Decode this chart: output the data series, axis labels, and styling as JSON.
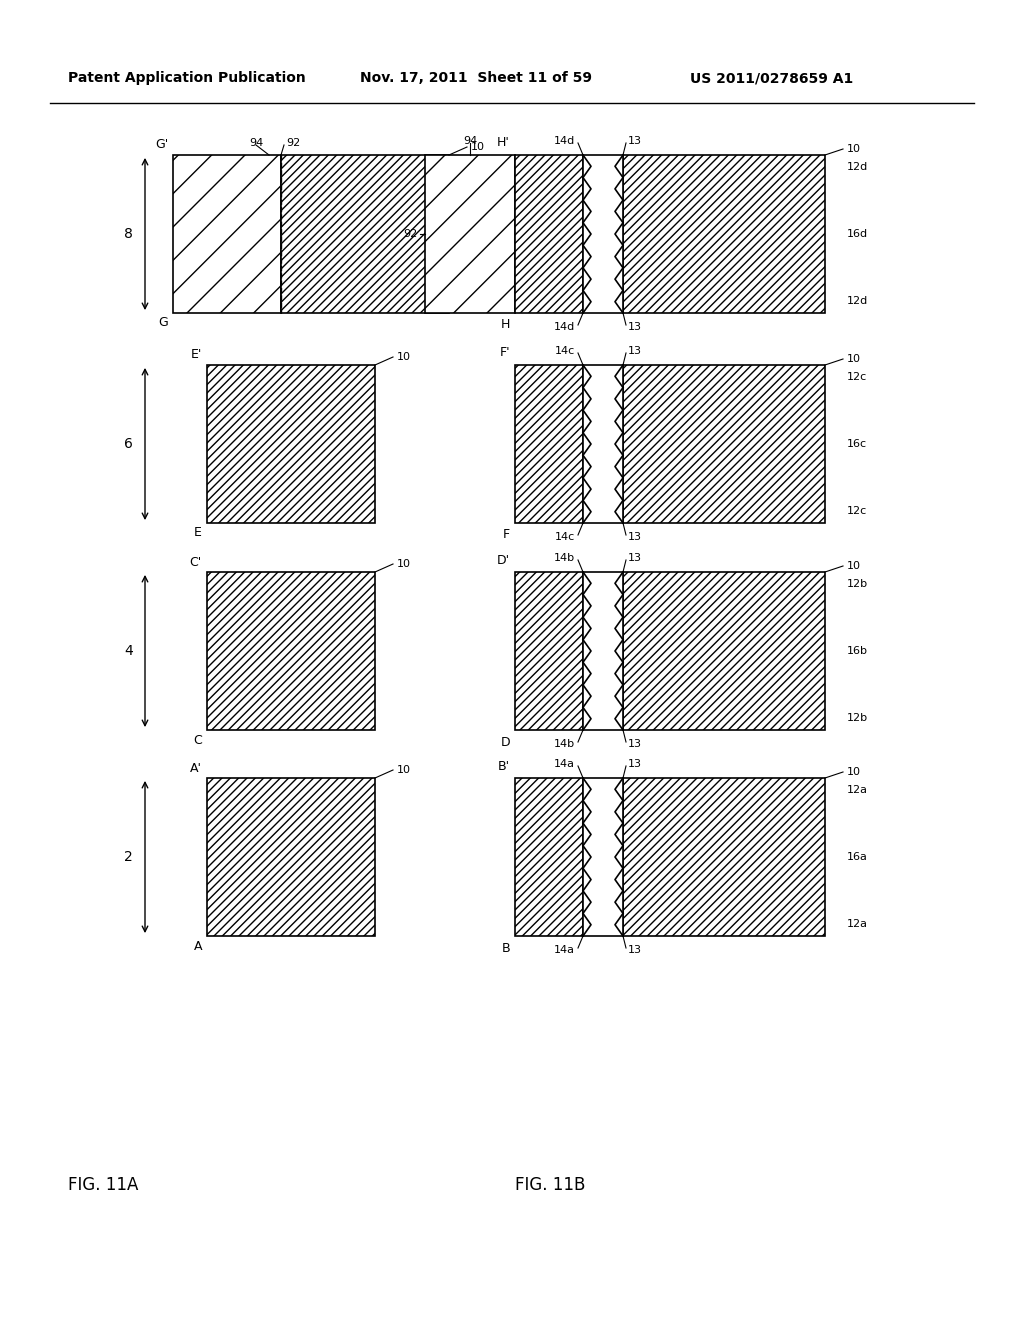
{
  "header_left": "Patent Application Publication",
  "header_mid": "Nov. 17, 2011  Sheet 11 of 59",
  "header_right": "US 2011/0278659 A1",
  "fig11A_label": "FIG. 11A",
  "fig11B_label": "FIG. 11B",
  "bg_color": "#ffffff"
}
